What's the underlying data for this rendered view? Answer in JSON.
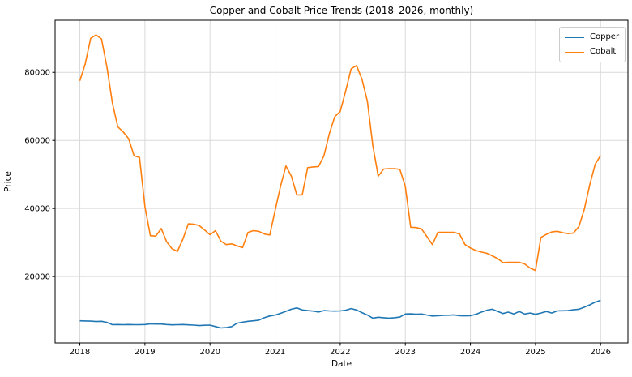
{
  "figure": {
    "background": "#ffffff",
    "text_color": "#000000",
    "spine_color": "#000000"
  },
  "chart_data": {
    "type": "line",
    "title": "Copper and Cobalt Price Trends (2018–2026, monthly)",
    "xlabel": "Date",
    "ylabel": "Price",
    "xlim": [
      2017.62,
      2026.42
    ],
    "ylim": [
      500,
      95300
    ],
    "x_ticks": [
      2018,
      2019,
      2020,
      2021,
      2022,
      2023,
      2024,
      2025,
      2026
    ],
    "y_ticks": [
      20000,
      40000,
      60000,
      80000
    ],
    "grid": true,
    "grid_color": "#d9d9d9",
    "legend_position": "upper right",
    "x_start_year": 2018,
    "x_step_months": 1,
    "series": [
      {
        "name": "Copper",
        "color": "#1f77b4",
        "values": [
          7000,
          6950,
          6900,
          6800,
          6850,
          6550,
          5850,
          5900,
          5850,
          5900,
          5850,
          5850,
          5900,
          6100,
          6050,
          6050,
          5900,
          5800,
          5850,
          5900,
          5800,
          5750,
          5600,
          5700,
          5750,
          5300,
          4900,
          5000,
          5300,
          6300,
          6600,
          6850,
          7000,
          7200,
          7900,
          8400,
          8700,
          9200,
          9800,
          10400,
          10800,
          10200,
          10000,
          9850,
          9600,
          10000,
          9900,
          9850,
          9900,
          10100,
          10600,
          10200,
          9400,
          8700,
          7800,
          8050,
          7900,
          7800,
          7900,
          8100,
          9000,
          9050,
          8950,
          9000,
          8700,
          8400,
          8500,
          8600,
          8650,
          8750,
          8500,
          8450,
          8500,
          8900,
          9550,
          10100,
          10400,
          9800,
          9150,
          9550,
          9000,
          9750,
          9000,
          9300,
          8900,
          9300,
          9750,
          9300,
          9900,
          9950,
          10000,
          10250,
          10400,
          11000,
          11700,
          12500,
          13000
        ]
      },
      {
        "name": "Cobalt",
        "color": "#ff7f0e",
        "values": [
          77500,
          82500,
          90000,
          91000,
          89800,
          81500,
          71000,
          64000,
          62500,
          60500,
          55500,
          55000,
          40500,
          32000,
          31900,
          34100,
          30200,
          28200,
          27400,
          31000,
          35500,
          35400,
          35000,
          33700,
          32300,
          33500,
          30400,
          29400,
          29600,
          29000,
          28500,
          33000,
          33500,
          33300,
          32500,
          32200,
          39500,
          46500,
          52500,
          49500,
          44000,
          44000,
          52000,
          52200,
          52300,
          55500,
          62000,
          67000,
          68500,
          74500,
          81000,
          82000,
          78000,
          71500,
          58500,
          49500,
          51600,
          51700,
          51700,
          51500,
          46500,
          34500,
          34400,
          34000,
          31700,
          29400,
          33000,
          33000,
          33000,
          33000,
          32500,
          29400,
          28400,
          27650,
          27200,
          26850,
          26100,
          25300,
          24100,
          24200,
          24200,
          24200,
          23700,
          22500,
          21800,
          31500,
          32400,
          33100,
          33300,
          32900,
          32600,
          32800,
          34700,
          39800,
          47000,
          53000,
          55600
        ]
      }
    ]
  }
}
